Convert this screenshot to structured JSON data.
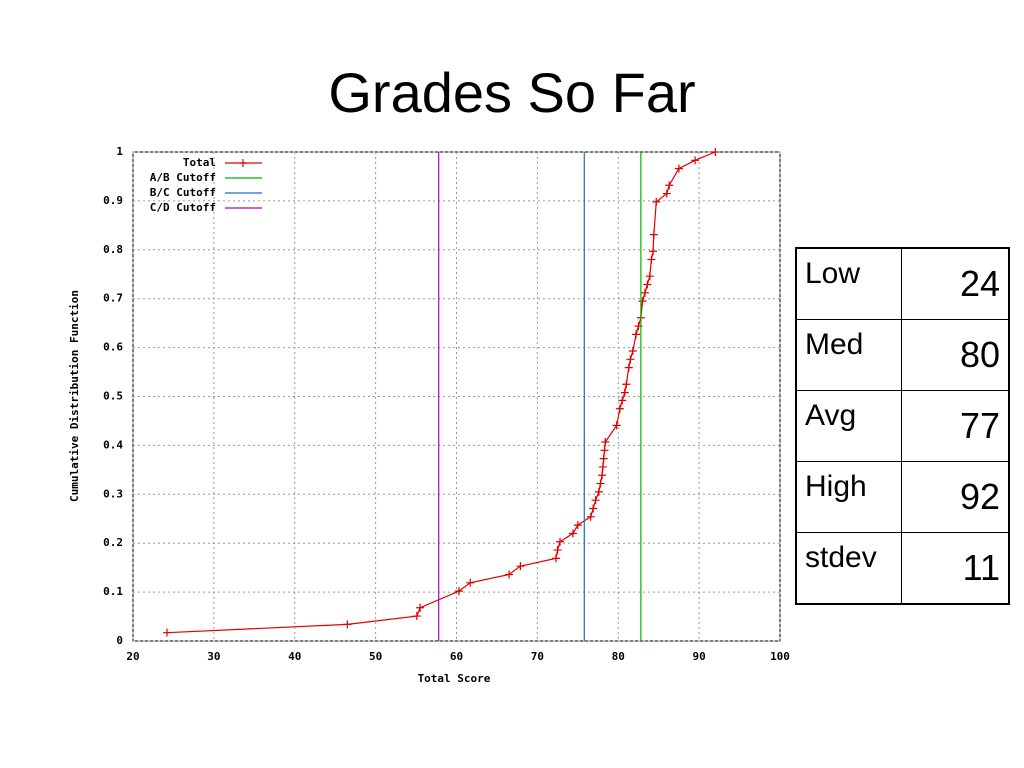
{
  "chart_data": {
    "type": "line",
    "title": "Grades So Far",
    "xlabel": "Total Score",
    "ylabel": "Cumulative Distribution Function",
    "xlim": [
      20,
      100
    ],
    "xticks": [
      20,
      30,
      40,
      50,
      60,
      70,
      80,
      90,
      100
    ],
    "ylim": [
      0,
      1
    ],
    "yticks": [
      0,
      0.1,
      0.2,
      0.3,
      0.4,
      0.5,
      0.6,
      0.7,
      0.8,
      0.9,
      1
    ],
    "grid": true,
    "legend": "top-left",
    "series": [
      {
        "name": "Total",
        "color": "#e00000",
        "marker": "+",
        "x": [
          24.2,
          46.5,
          55.1,
          55.5,
          60.3,
          61.7,
          66.5,
          67.9,
          72.3,
          72.5,
          72.8,
          74.4,
          75.0,
          76.6,
          76.9,
          77.2,
          77.6,
          77.8,
          78.0,
          78.1,
          78.2,
          78.3,
          78.4,
          79.8,
          80.2,
          80.5,
          80.8,
          81.0,
          81.3,
          81.5,
          81.8,
          82.2,
          82.5,
          82.8,
          83.0,
          83.3,
          83.6,
          83.9,
          84.1,
          84.3,
          84.4,
          84.7,
          86.0,
          86.3,
          87.5,
          89.5,
          92.0
        ],
        "values": [
          0.017,
          0.034,
          0.051,
          0.068,
          0.102,
          0.119,
          0.136,
          0.153,
          0.169,
          0.186,
          0.203,
          0.22,
          0.237,
          0.254,
          0.271,
          0.288,
          0.305,
          0.322,
          0.339,
          0.356,
          0.373,
          0.39,
          0.407,
          0.441,
          0.475,
          0.492,
          0.508,
          0.525,
          0.559,
          0.576,
          0.593,
          0.627,
          0.644,
          0.661,
          0.695,
          0.712,
          0.729,
          0.746,
          0.78,
          0.797,
          0.831,
          0.898,
          0.915,
          0.932,
          0.966,
          0.983,
          1.0
        ]
      },
      {
        "name": "A/B Cutoff",
        "color": "#00b000",
        "x": [
          82.8,
          82.8
        ],
        "values": [
          0,
          1
        ]
      },
      {
        "name": "B/C Cutoff",
        "color": "#1a6fc0",
        "x": [
          75.8,
          75.8
        ],
        "values": [
          0,
          1
        ]
      },
      {
        "name": "C/D Cutoff",
        "color": "#b000c8",
        "x": [
          57.8,
          57.8
        ],
        "values": [
          0,
          1
        ]
      }
    ]
  },
  "table": {
    "rows": [
      [
        "Low",
        24
      ],
      [
        "Med",
        80
      ],
      [
        "Avg",
        77
      ],
      [
        "High",
        92
      ],
      [
        "stdev",
        11
      ]
    ]
  }
}
